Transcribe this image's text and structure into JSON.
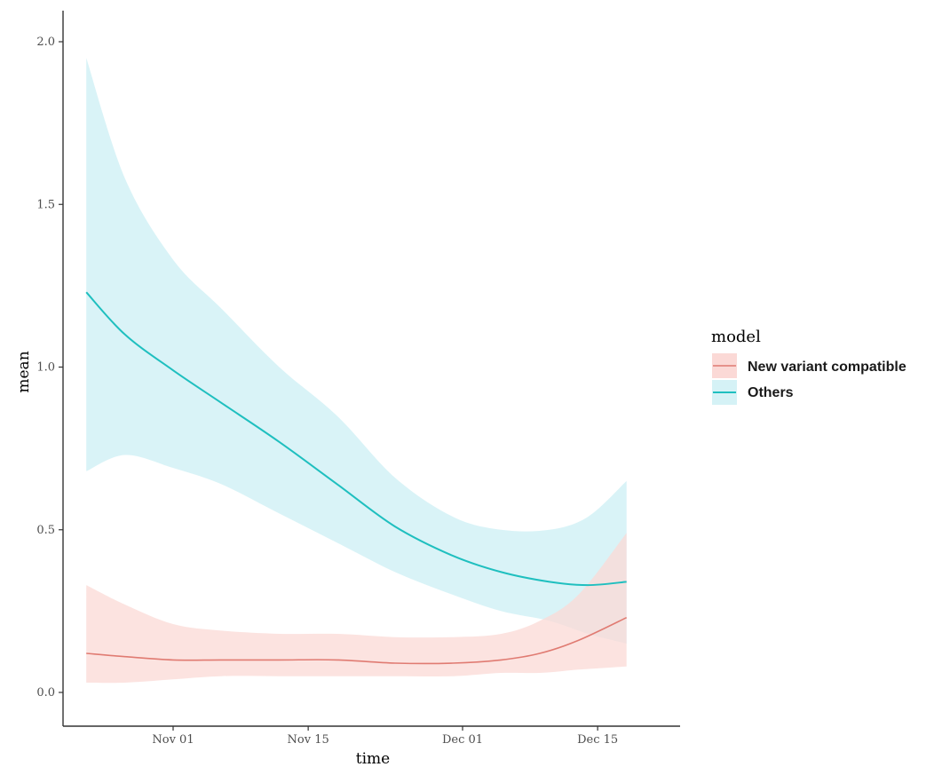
{
  "chart_data": {
    "type": "line",
    "xlabel": "time",
    "ylabel": "mean",
    "x_ticks": [
      {
        "label": "Nov 01",
        "date": "2020-11-01"
      },
      {
        "label": "Nov 15",
        "date": "2020-11-15"
      },
      {
        "label": "Dec 01",
        "date": "2020-12-01"
      },
      {
        "label": "Dec 15",
        "date": "2020-12-15"
      }
    ],
    "y_ticks": [
      "0.0",
      "0.5",
      "1.0",
      "1.5",
      "2.0"
    ],
    "xlim": [
      "2020-10-21",
      "2020-12-20"
    ],
    "ylim": [
      0,
      2.0
    ],
    "grid": false,
    "legend": {
      "title": "model",
      "position": "right",
      "entries": [
        "New variant compatible",
        "Others"
      ]
    },
    "series": [
      {
        "name": "New variant compatible",
        "color": "#e07b72",
        "band_color": "#fbd9d6",
        "points": [
          {
            "x": "2020-10-23",
            "y": 0.12,
            "lo": 0.03,
            "hi": 0.33
          },
          {
            "x": "2020-10-27",
            "y": 0.11,
            "lo": 0.03,
            "hi": 0.27
          },
          {
            "x": "2020-11-01",
            "y": 0.1,
            "lo": 0.04,
            "hi": 0.21
          },
          {
            "x": "2020-11-06",
            "y": 0.1,
            "lo": 0.05,
            "hi": 0.19
          },
          {
            "x": "2020-11-12",
            "y": 0.1,
            "lo": 0.05,
            "hi": 0.18
          },
          {
            "x": "2020-11-18",
            "y": 0.1,
            "lo": 0.05,
            "hi": 0.18
          },
          {
            "x": "2020-11-24",
            "y": 0.09,
            "lo": 0.05,
            "hi": 0.17
          },
          {
            "x": "2020-11-30",
            "y": 0.09,
            "lo": 0.05,
            "hi": 0.17
          },
          {
            "x": "2020-12-05",
            "y": 0.1,
            "lo": 0.06,
            "hi": 0.18
          },
          {
            "x": "2020-12-09",
            "y": 0.12,
            "lo": 0.06,
            "hi": 0.22
          },
          {
            "x": "2020-12-13",
            "y": 0.16,
            "lo": 0.07,
            "hi": 0.3
          },
          {
            "x": "2020-12-18",
            "y": 0.23,
            "lo": 0.08,
            "hi": 0.49
          }
        ]
      },
      {
        "name": "Others",
        "color": "#1fbfbf",
        "band_color": "#d5f2f6",
        "points": [
          {
            "x": "2020-10-23",
            "y": 1.23,
            "lo": 0.68,
            "hi": 1.95
          },
          {
            "x": "2020-10-27",
            "y": 1.1,
            "lo": 0.73,
            "hi": 1.58
          },
          {
            "x": "2020-11-01",
            "y": 0.99,
            "lo": 0.69,
            "hi": 1.33
          },
          {
            "x": "2020-11-06",
            "y": 0.89,
            "lo": 0.64,
            "hi": 1.18
          },
          {
            "x": "2020-11-12",
            "y": 0.77,
            "lo": 0.55,
            "hi": 1.0
          },
          {
            "x": "2020-11-18",
            "y": 0.64,
            "lo": 0.46,
            "hi": 0.85
          },
          {
            "x": "2020-11-24",
            "y": 0.51,
            "lo": 0.37,
            "hi": 0.66
          },
          {
            "x": "2020-11-30",
            "y": 0.42,
            "lo": 0.3,
            "hi": 0.54
          },
          {
            "x": "2020-12-05",
            "y": 0.37,
            "lo": 0.25,
            "hi": 0.5
          },
          {
            "x": "2020-12-10",
            "y": 0.34,
            "lo": 0.22,
            "hi": 0.5
          },
          {
            "x": "2020-12-14",
            "y": 0.33,
            "lo": 0.18,
            "hi": 0.54
          },
          {
            "x": "2020-12-18",
            "y": 0.34,
            "lo": 0.15,
            "hi": 0.65
          }
        ]
      }
    ]
  }
}
